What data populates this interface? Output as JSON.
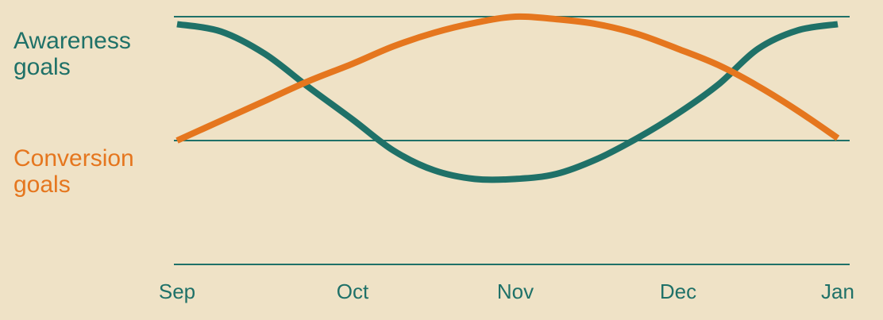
{
  "chart_data": {
    "type": "line",
    "title": "",
    "xlabel": "",
    "ylabel": "",
    "categories": [
      "Sep",
      "Oct",
      "Nov",
      "Dec",
      "Jan"
    ],
    "grid": true,
    "legend": "left",
    "colors": {
      "background": "#efe2c6",
      "awareness": "#1f7168",
      "conversion": "#e5761e",
      "gridline": "#1f7168",
      "tick": "#1f7168"
    },
    "series": [
      {
        "name": "Awareness goals",
        "key": "awareness",
        "x": [
          0,
          0.25,
          0.5,
          0.75,
          1,
          1.25,
          1.5,
          1.75,
          2,
          2.25,
          2.5,
          2.75,
          3,
          3.25,
          3.5,
          3.75,
          4
        ],
        "values": [
          0.94,
          0.88,
          0.7,
          0.43,
          0.17,
          -0.08,
          -0.24,
          -0.31,
          -0.31,
          -0.27,
          -0.15,
          0.02,
          0.22,
          0.45,
          0.74,
          0.89,
          0.94
        ]
      },
      {
        "name": "Conversion goals",
        "key": "conversion",
        "x": [
          0,
          0.25,
          0.5,
          0.75,
          1,
          1.25,
          1.5,
          1.75,
          2,
          2.25,
          2.5,
          2.75,
          3,
          3.25,
          3.5,
          3.75,
          4
        ],
        "values": [
          0.0,
          0.16,
          0.32,
          0.48,
          0.62,
          0.76,
          0.87,
          0.95,
          1.0,
          0.98,
          0.94,
          0.86,
          0.74,
          0.61,
          0.44,
          0.24,
          0.02
        ]
      }
    ],
    "reference_lines": [
      {
        "name": "awareness-level",
        "y": 1.0
      },
      {
        "name": "conversion-level",
        "y": 0.0
      },
      {
        "name": "baseline",
        "y": -1.0
      }
    ],
    "ylim": [
      -1.0,
      1.0
    ]
  },
  "labels": {
    "awareness": [
      "Awareness",
      "goals"
    ],
    "conversion": [
      "Conversion",
      "goals"
    ]
  }
}
